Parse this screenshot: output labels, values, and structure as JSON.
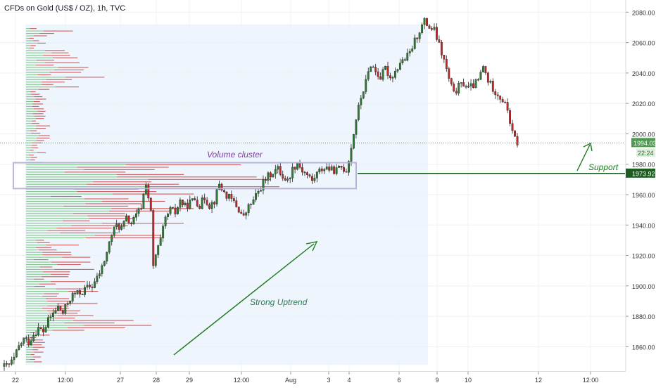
{
  "header": {
    "symbol_title": "CFDs on Gold (US$ / OZ), 1h, TVC"
  },
  "colors": {
    "up_candle": "#2e7d32",
    "down_candle": "#c62828",
    "volume_up": "#66bb6a",
    "volume_down": "#c62828",
    "annotation_green": "#1b7a1b",
    "cluster_label": "#7b3fa0",
    "uptrend_label": "#2e7d55",
    "range_shade": "#e8f1fb",
    "current_price_bg": "#4e9a4e",
    "support_bg": "#1b5e20"
  },
  "price_axis": {
    "ticks": [
      "2080.00",
      "2060.00",
      "2040.00",
      "2020.00",
      "2000.00",
      "1980.00",
      "1960.00",
      "1940.00",
      "1920.00",
      "1900.00",
      "1880.00",
      "1860.00"
    ],
    "current_price_label": "1994.03",
    "countdown_label": "22:24",
    "support_price_label": "1973.92"
  },
  "time_axis": {
    "ticks": [
      "22",
      "12:00",
      "27",
      "28",
      "29",
      "12:00",
      "Aug",
      "3",
      "4",
      "6",
      "9",
      "10",
      "12",
      "12:00"
    ]
  },
  "annotations": {
    "volume_cluster": "Volume cluster",
    "strong_uptrend": "Strong Uptrend",
    "support": "Support"
  },
  "chart_data": {
    "type": "candlestick",
    "title": "CFDs on Gold (US$ / OZ), 1h, TVC",
    "ylim": [
      1844,
      2088
    ],
    "y_ticks": [
      1860,
      1880,
      1900,
      1920,
      1940,
      1960,
      1980,
      2000,
      2020,
      2040,
      2060,
      2080
    ],
    "x_tick_labels": [
      "22",
      "12:00",
      "27",
      "28",
      "29",
      "12:00",
      "Aug",
      "3",
      "4",
      "6",
      "9",
      "10",
      "12",
      "12:00"
    ],
    "close_path": [
      [
        0,
        1847
      ],
      [
        2,
        1848
      ],
      [
        4,
        1852
      ],
      [
        6,
        1860
      ],
      [
        8,
        1865
      ],
      [
        10,
        1863
      ],
      [
        12,
        1868
      ],
      [
        14,
        1872
      ],
      [
        16,
        1870
      ],
      [
        18,
        1877
      ],
      [
        20,
        1882
      ],
      [
        22,
        1886
      ],
      [
        24,
        1882
      ],
      [
        26,
        1889
      ],
      [
        28,
        1894
      ],
      [
        30,
        1895
      ],
      [
        32,
        1896
      ],
      [
        34,
        1899
      ],
      [
        36,
        1900
      ],
      [
        38,
        1905
      ],
      [
        40,
        1912
      ],
      [
        42,
        1922
      ],
      [
        44,
        1934
      ],
      [
        46,
        1940
      ],
      [
        48,
        1938
      ],
      [
        50,
        1944
      ],
      [
        52,
        1941
      ],
      [
        54,
        1946
      ],
      [
        56,
        1952
      ],
      [
        58,
        1968
      ],
      [
        60,
        1948
      ],
      [
        61,
        1912
      ],
      [
        62,
        1920
      ],
      [
        64,
        1930
      ],
      [
        66,
        1944
      ],
      [
        68,
        1950
      ],
      [
        70,
        1948
      ],
      [
        72,
        1956
      ],
      [
        74,
        1952
      ],
      [
        76,
        1955
      ],
      [
        78,
        1957
      ],
      [
        80,
        1953
      ],
      [
        82,
        1958
      ],
      [
        84,
        1953
      ],
      [
        86,
        1956
      ],
      [
        88,
        1967
      ],
      [
        90,
        1961
      ],
      [
        92,
        1958
      ],
      [
        94,
        1955
      ],
      [
        96,
        1950
      ],
      [
        98,
        1945
      ],
      [
        100,
        1952
      ],
      [
        102,
        1956
      ],
      [
        104,
        1962
      ],
      [
        106,
        1968
      ],
      [
        108,
        1972
      ],
      [
        110,
        1975
      ],
      [
        112,
        1977
      ],
      [
        114,
        1972
      ],
      [
        116,
        1969
      ],
      [
        118,
        1977
      ],
      [
        120,
        1981
      ],
      [
        122,
        1976
      ],
      [
        124,
        1973
      ],
      [
        126,
        1969
      ],
      [
        128,
        1974
      ],
      [
        130,
        1977
      ],
      [
        132,
        1978
      ],
      [
        134,
        1976
      ],
      [
        136,
        1976
      ],
      [
        138,
        1978
      ],
      [
        140,
        1976
      ],
      [
        142,
        1991
      ],
      [
        144,
        2010
      ],
      [
        146,
        2024
      ],
      [
        148,
        2034
      ],
      [
        150,
        2046
      ],
      [
        152,
        2041
      ],
      [
        154,
        2037
      ],
      [
        156,
        2043
      ],
      [
        158,
        2037
      ],
      [
        160,
        2041
      ],
      [
        162,
        2047
      ],
      [
        164,
        2049
      ],
      [
        166,
        2053
      ],
      [
        168,
        2061
      ],
      [
        170,
        2068
      ],
      [
        172,
        2074
      ],
      [
        174,
        2070
      ],
      [
        176,
        2068
      ],
      [
        178,
        2058
      ],
      [
        180,
        2048
      ],
      [
        182,
        2036
      ],
      [
        184,
        2026
      ],
      [
        186,
        2031
      ],
      [
        188,
        2033
      ],
      [
        190,
        2030
      ],
      [
        192,
        2032
      ],
      [
        194,
        2035
      ],
      [
        196,
        2044
      ],
      [
        198,
        2035
      ],
      [
        200,
        2030
      ],
      [
        202,
        2026
      ],
      [
        204,
        2022
      ],
      [
        206,
        2016
      ],
      [
        208,
        2000
      ],
      [
        210,
        1994
      ]
    ],
    "volume_profile_note": "horizontal volume-by-price histogram on left side, up/down volume",
    "levels": {
      "current_price": 1994.03,
      "support": 1973.92
    },
    "cluster_zone": [
      1964,
      1981
    ],
    "grid": true,
    "legend": "none"
  }
}
